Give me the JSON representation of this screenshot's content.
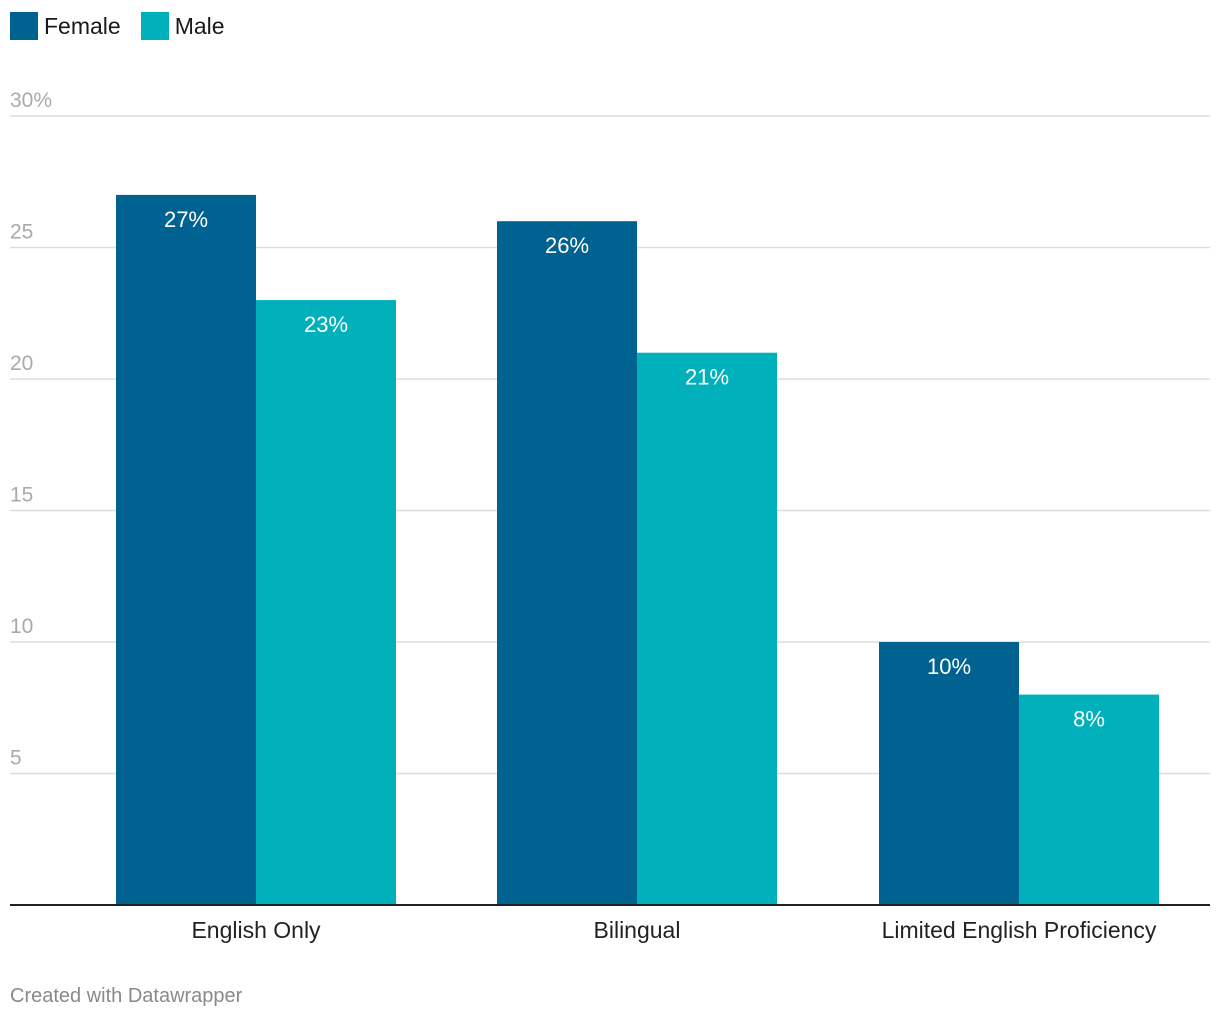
{
  "colors": {
    "female": "#006290",
    "male": "#00b0ba",
    "grid": "#dddddd",
    "axis": "#222222",
    "tick_label": "#aaaaaa",
    "category_label": "#222222",
    "data_label": "#ffffff",
    "footer": "#8a8a8a"
  },
  "legend": [
    {
      "name": "Female",
      "color": "#006290"
    },
    {
      "name": "Male",
      "color": "#00b0ba"
    }
  ],
  "footer": "Created with Datawrapper",
  "chart_data": {
    "type": "bar",
    "categories": [
      "English Only",
      "Bilingual",
      "Limited English Proficiency"
    ],
    "series": [
      {
        "name": "Female",
        "values": [
          27,
          26,
          10
        ],
        "labels": [
          "27%",
          "26%",
          "10%"
        ]
      },
      {
        "name": "Male",
        "values": [
          23,
          21,
          8
        ],
        "labels": [
          "23%",
          "21%",
          "8%"
        ]
      }
    ],
    "ylim": [
      0,
      30
    ],
    "yticks": [
      5,
      10,
      15,
      20,
      25,
      30
    ],
    "ytick_labels": [
      "5",
      "10",
      "15",
      "20",
      "25",
      "30%"
    ],
    "grid": true,
    "legend_position": "top-left",
    "title": "",
    "xlabel": "",
    "ylabel": ""
  }
}
